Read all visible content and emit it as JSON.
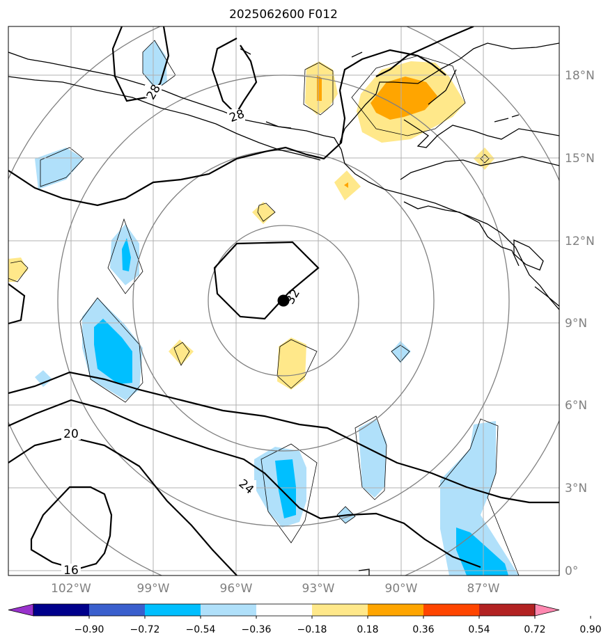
{
  "title": "2025062600 F012",
  "map": {
    "lat_labels": [
      "18°N",
      "15°N",
      "12°N",
      "9°N",
      "6°N",
      "3°N",
      "0°"
    ],
    "lon_labels": [
      "102°W",
      "99°W",
      "96°W",
      "93°W",
      "90°W",
      "87°W"
    ],
    "contour_labels": [
      "28",
      "28",
      "32",
      "20",
      "24",
      "16"
    ],
    "colors": {
      "coast": "#000000",
      "grid": "#b0b0b0",
      "range_rings": "#808080",
      "storm_marker": "#000000"
    }
  },
  "colorbar": {
    "ticks": [
      "−0.90",
      "−0.72",
      "−0.54",
      "−0.36",
      "−0.18",
      "0.18",
      "0.36",
      "0.54",
      "0.72",
      "0.90"
    ],
    "colors": [
      "#9932cc",
      "#00008b",
      "#3a5fcd",
      "#00bfff",
      "#b0e0fa",
      "#ffffff",
      "#ffe88a",
      "#ffa500",
      "#ff4500",
      "#b22222",
      "#ff88b0"
    ]
  }
}
